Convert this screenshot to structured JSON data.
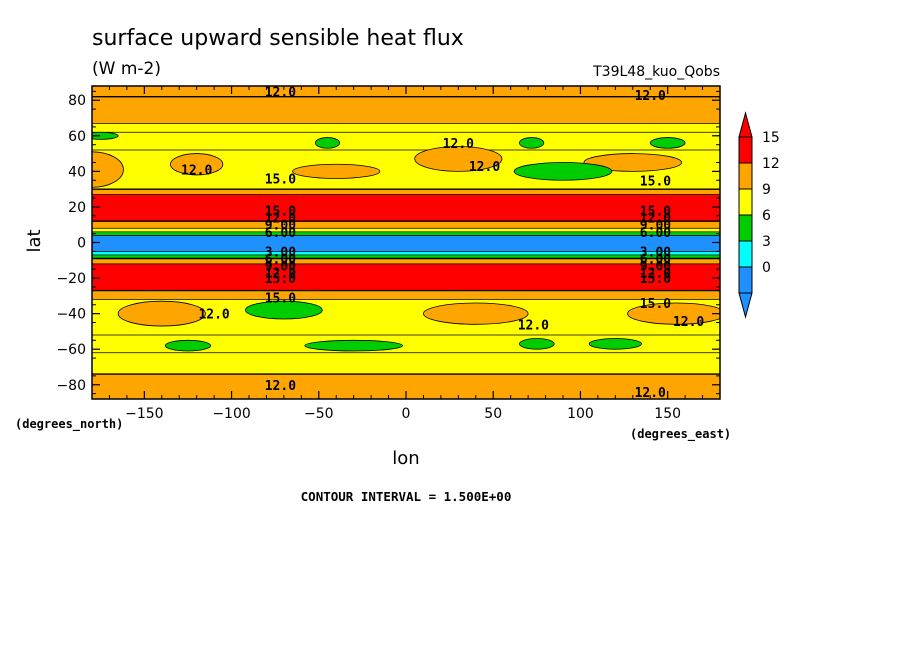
{
  "chart_data": {
    "type": "heatmap",
    "subtype": "filled-contour",
    "title": "surface upward sensible heat flux",
    "units": "(W m-2)",
    "run_label": "T39L48_kuo_Qobs",
    "xlabel": "lon",
    "ylabel": "lat",
    "x_units_label": "(degrees_east)",
    "y_units_label": "(degrees_north)",
    "xlim": [
      -180,
      180
    ],
    "ylim": [
      -88,
      88
    ],
    "x_ticks": [
      -150,
      -100,
      -50,
      0,
      50,
      100,
      150
    ],
    "y_ticks": [
      80,
      60,
      40,
      20,
      0,
      -20,
      -40,
      -60,
      -80
    ],
    "contour_interval_text": "CONTOUR INTERVAL = 1.500E+00",
    "contour_interval": 1.5,
    "colorbar": {
      "levels": [
        0,
        3,
        6,
        9,
        12,
        15
      ],
      "colors": [
        "#1e90ff",
        "#00ffff",
        "#00cd00",
        "#ffff00",
        "#ffa500",
        "#ff0000"
      ],
      "tick_labels": [
        "15",
        "12",
        "9",
        "6",
        "3",
        "0"
      ]
    },
    "zonal_bands": [
      {
        "lat_from": 88,
        "lat_to": 82,
        "value": 13.5
      },
      {
        "lat_from": 82,
        "lat_to": 67,
        "value": 12.5
      },
      {
        "lat_from": 67,
        "lat_to": 62,
        "value": 10.5
      },
      {
        "lat_from": 62,
        "lat_to": 52,
        "value": 11.0
      },
      {
        "lat_from": 52,
        "lat_to": 30,
        "value": 10.0
      },
      {
        "lat_from": 30,
        "lat_to": 27,
        "value": 13.0
      },
      {
        "lat_from": 27,
        "lat_to": 12,
        "value": 16.0
      },
      {
        "lat_from": 12,
        "lat_to": 8,
        "value": 13.5
      },
      {
        "lat_from": 8,
        "lat_to": 6,
        "value": 10.0
      },
      {
        "lat_from": 6,
        "lat_to": 4,
        "value": 7.0
      },
      {
        "lat_from": 4,
        "lat_to": -5,
        "value": 2.0
      },
      {
        "lat_from": -5,
        "lat_to": -7,
        "value": 4.5
      },
      {
        "lat_from": -7,
        "lat_to": -9,
        "value": 7.5
      },
      {
        "lat_from": -9,
        "lat_to": -12,
        "value": 13.0
      },
      {
        "lat_from": -12,
        "lat_to": -27,
        "value": 16.0
      },
      {
        "lat_from": -27,
        "lat_to": -32,
        "value": 12.5
      },
      {
        "lat_from": -32,
        "lat_to": -52,
        "value": 10.5
      },
      {
        "lat_from": -52,
        "lat_to": -62,
        "value": 10.0
      },
      {
        "lat_from": -62,
        "lat_to": -74,
        "value": 10.5
      },
      {
        "lat_from": -74,
        "lat_to": -88,
        "value": 12.8
      }
    ],
    "blobs": [
      {
        "lon": -180,
        "lat": 41,
        "rlon": 18,
        "rlat": 10,
        "value": 12.5
      },
      {
        "lon": 30,
        "lat": 47,
        "rlon": 25,
        "rlat": 7,
        "value": 12.5
      },
      {
        "lon": -120,
        "lat": 44,
        "rlon": 15,
        "rlat": 6,
        "value": 12.5
      },
      {
        "lon": 130,
        "lat": 45,
        "rlon": 28,
        "rlat": 5,
        "value": 12.5
      },
      {
        "lon": -40,
        "lat": 40,
        "rlon": 25,
        "rlat": 4,
        "value": 12.5
      },
      {
        "lon": -45,
        "lat": 56,
        "rlon": 7,
        "rlat": 3,
        "value": 7.5
      },
      {
        "lon": 72,
        "lat": 56,
        "rlon": 7,
        "rlat": 3,
        "value": 7.5
      },
      {
        "lon": 150,
        "lat": 56,
        "rlon": 10,
        "rlat": 3,
        "value": 7.5
      },
      {
        "lon": 90,
        "lat": 40,
        "rlon": 28,
        "rlat": 5,
        "value": 7.5
      },
      {
        "lon": -175,
        "lat": 60,
        "rlon": 10,
        "rlat": 2,
        "value": 7.5
      },
      {
        "lon": -140,
        "lat": -40,
        "rlon": 25,
        "rlat": 7,
        "value": 12.5
      },
      {
        "lon": 40,
        "lat": -40,
        "rlon": 30,
        "rlat": 6,
        "value": 12.5
      },
      {
        "lon": 155,
        "lat": -40,
        "rlon": 28,
        "rlat": 6,
        "value": 12.5
      },
      {
        "lon": -70,
        "lat": -38,
        "rlon": 22,
        "rlat": 5,
        "value": 7.5
      },
      {
        "lon": -125,
        "lat": -58,
        "rlon": 13,
        "rlat": 3,
        "value": 7.5
      },
      {
        "lon": -30,
        "lat": -58,
        "rlon": 28,
        "rlat": 3,
        "value": 7.5
      },
      {
        "lon": 75,
        "lat": -57,
        "rlon": 10,
        "rlat": 3,
        "value": 7.5
      },
      {
        "lon": 120,
        "lat": -57,
        "rlon": 15,
        "rlat": 3,
        "value": 7.5
      }
    ],
    "contour_labels": [
      {
        "lon": -72,
        "lat": 85,
        "text": "12.0"
      },
      {
        "lon": 140,
        "lat": 83,
        "text": "12.0"
      },
      {
        "lon": 30,
        "lat": 56,
        "text": "12.0"
      },
      {
        "lon": 45,
        "lat": 43,
        "text": "12.0"
      },
      {
        "lon": -120,
        "lat": 41,
        "text": "12.0"
      },
      {
        "lon": -72,
        "lat": 36,
        "text": "15.0"
      },
      {
        "lon": 143,
        "lat": 35,
        "text": "15.0"
      },
      {
        "lon": -72,
        "lat": 18,
        "text": "15.0"
      },
      {
        "lon": -72,
        "lat": 14,
        "text": "12.0"
      },
      {
        "lon": -72,
        "lat": 10,
        "text": "9.00"
      },
      {
        "lon": -72,
        "lat": 6,
        "text": "6.00"
      },
      {
        "lon": -72,
        "lat": -5,
        "text": "3.00"
      },
      {
        "lon": -72,
        "lat": -9,
        "text": "6.00"
      },
      {
        "lon": -72,
        "lat": -13,
        "text": "9.00"
      },
      {
        "lon": -72,
        "lat": -17,
        "text": "12.0"
      },
      {
        "lon": -72,
        "lat": -20,
        "text": "15.0"
      },
      {
        "lon": 143,
        "lat": 18,
        "text": "15.0"
      },
      {
        "lon": 143,
        "lat": 14,
        "text": "12.0"
      },
      {
        "lon": 143,
        "lat": 10,
        "text": "9.00"
      },
      {
        "lon": 143,
        "lat": 6,
        "text": "6.00"
      },
      {
        "lon": 143,
        "lat": -5,
        "text": "3.00"
      },
      {
        "lon": 143,
        "lat": -9,
        "text": "6.00"
      },
      {
        "lon": 143,
        "lat": -13,
        "text": "9.00"
      },
      {
        "lon": 143,
        "lat": -17,
        "text": "12.0"
      },
      {
        "lon": 143,
        "lat": -20,
        "text": "15.0"
      },
      {
        "lon": -72,
        "lat": -31,
        "text": "15.0"
      },
      {
        "lon": 143,
        "lat": -34,
        "text": "15.0"
      },
      {
        "lon": -110,
        "lat": -40,
        "text": "12.0"
      },
      {
        "lon": 73,
        "lat": -46,
        "text": "12.0"
      },
      {
        "lon": 162,
        "lat": -44,
        "text": "12.0"
      },
      {
        "lon": -72,
        "lat": -80,
        "text": "12.0"
      },
      {
        "lon": 140,
        "lat": -84,
        "text": "12.0"
      }
    ]
  }
}
